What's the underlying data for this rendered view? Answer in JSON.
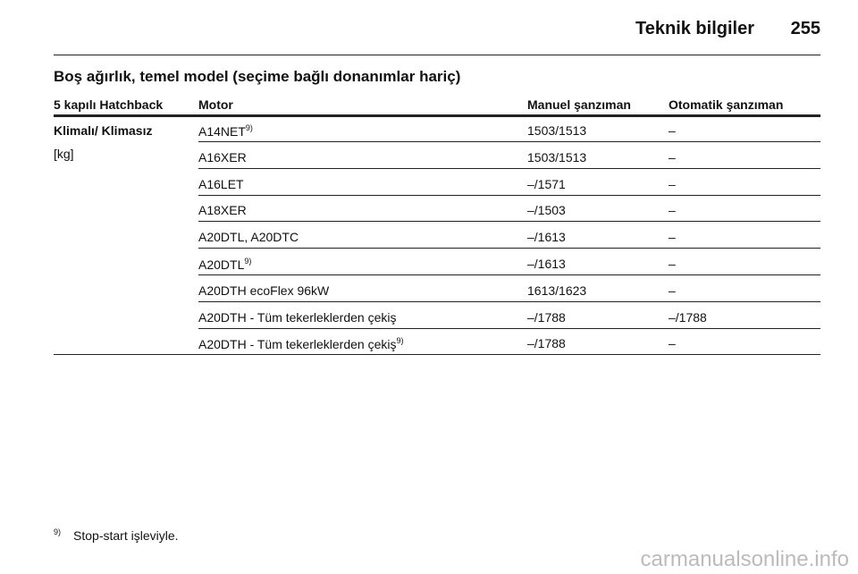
{
  "header": {
    "title": "Teknik bilgiler",
    "page": "255"
  },
  "section_title": "Boş ağırlık, temel model (seçime bağlı donanımlar hariç)",
  "table": {
    "columns": [
      "5 kapılı Hatchback",
      "Motor",
      "Manuel şanzıman",
      "Otomatik şanzıman"
    ],
    "group": {
      "label": "Klimalı/ Klimasız",
      "unit": "[kg]"
    },
    "rows": [
      {
        "motor": "A14NET",
        "note": "9)",
        "manual": "1503/1513",
        "automatic": "–"
      },
      {
        "motor": "A16XER",
        "manual": "1503/1513",
        "automatic": "–"
      },
      {
        "motor": "A16LET",
        "manual": "–/1571",
        "automatic": "–"
      },
      {
        "motor": "A18XER",
        "manual": "–/1503",
        "automatic": "–"
      },
      {
        "motor": "A20DTL, A20DTC",
        "manual": "–/1613",
        "automatic": "–"
      },
      {
        "motor": "A20DTL",
        "note": "9)",
        "manual": "–/1613",
        "automatic": "–"
      },
      {
        "motor": "A20DTH ecoFlex 96kW",
        "manual": "1613/1623",
        "automatic": "–"
      },
      {
        "motor": "A20DTH - Tüm tekerleklerden çekiş",
        "manual": "–/1788",
        "automatic": "–/1788"
      },
      {
        "motor": "A20DTH - Tüm tekerleklerden çekiş",
        "note": "9)",
        "manual": "–/1788",
        "automatic": "–"
      }
    ]
  },
  "footnote": {
    "mark": "9)",
    "text": "Stop-start işleviyle."
  },
  "watermark": "carmanualsonline.info"
}
